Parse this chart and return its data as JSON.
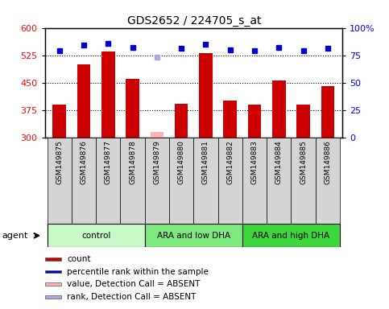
{
  "title": "GDS2652 / 224705_s_at",
  "samples": [
    "GSM149875",
    "GSM149876",
    "GSM149877",
    "GSM149878",
    "GSM149879",
    "GSM149880",
    "GSM149881",
    "GSM149882",
    "GSM149883",
    "GSM149884",
    "GSM149885",
    "GSM149886"
  ],
  "counts": [
    390,
    500,
    535,
    460,
    null,
    393,
    530,
    400,
    390,
    455,
    390,
    440
  ],
  "absent_count_idx": 4,
  "absent_count_val": 315,
  "percentile_ranks": [
    79,
    84,
    86,
    82,
    null,
    81,
    85,
    80,
    79,
    82,
    79,
    81
  ],
  "absent_rank_idx": 4,
  "absent_rank_val": 73,
  "groups": [
    {
      "label": "control",
      "start": 0,
      "end": 3,
      "color": "#c8fac8"
    },
    {
      "label": "ARA and low DHA",
      "start": 4,
      "end": 7,
      "color": "#7de87d"
    },
    {
      "label": "ARA and high DHA",
      "start": 8,
      "end": 11,
      "color": "#3dd63d"
    }
  ],
  "ylim_left": [
    300,
    600
  ],
  "ylim_right": [
    0,
    100
  ],
  "yticks_left": [
    300,
    375,
    450,
    525,
    600
  ],
  "yticks_right": [
    0,
    25,
    50,
    75,
    100
  ],
  "hlines": [
    375,
    450,
    525
  ],
  "bar_color": "#cc0000",
  "absent_bar_color": "#ffb0b0",
  "rank_color": "#0000cc",
  "absent_rank_color": "#aaaadd",
  "bar_width": 0.55,
  "legend_items": [
    {
      "label": "count",
      "color": "#cc0000"
    },
    {
      "label": "percentile rank within the sample",
      "color": "#0000cc"
    },
    {
      "label": "value, Detection Call = ABSENT",
      "color": "#ffb0b0"
    },
    {
      "label": "rank, Detection Call = ABSENT",
      "color": "#aaaadd"
    }
  ]
}
